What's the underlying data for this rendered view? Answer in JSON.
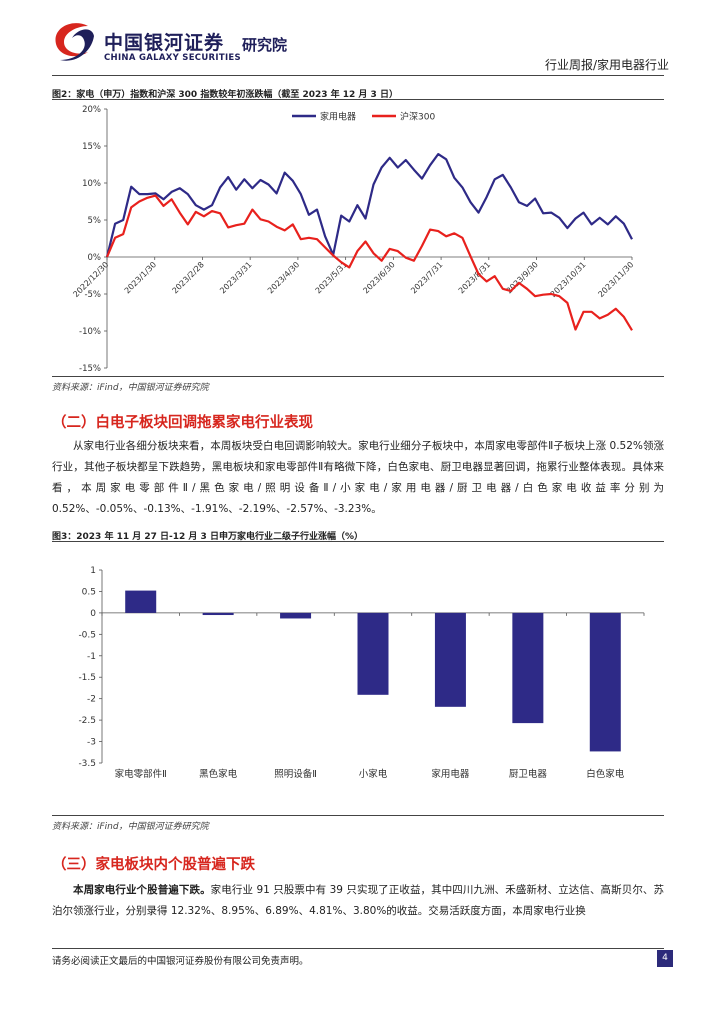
{
  "header": {
    "company_name": "中国银河证券",
    "company_en": "CHINA GALAXY SECURITIES",
    "institute": "研究院",
    "report_type": "行业周报/家用电器行业",
    "colors": {
      "brand": "#1f1f5a",
      "logo_red": "#d7261e"
    }
  },
  "figure2": {
    "title": "图2：家电（申万）指数和沪深 300 指数较年初涨跌幅（截至 2023 年 12 月 3 日）",
    "source": "资料来源：iFind，中国银河证券研究院",
    "chart_data": {
      "type": "line",
      "ylim": [
        -15,
        20
      ],
      "yticks": [
        "20%",
        "15%",
        "10%",
        "5%",
        "0%",
        "-5%",
        "-10%",
        "-15%"
      ],
      "xtick_labels": [
        "2022/12/30",
        "2023/1/30",
        "2023/2/28",
        "2023/3/31",
        "2023/4/30",
        "2023/5/31",
        "2023/6/30",
        "2023/7/31",
        "2023/8/31",
        "2023/9/30",
        "2023/10/31",
        "2023/11/30"
      ],
      "legend_position": "top-center",
      "series": [
        {
          "name": "家用电器",
          "color": "#2e2a87",
          "values": [
            0,
            4.5,
            5,
            9.5,
            8.5,
            8.5,
            8.6,
            7.8,
            8.8,
            9.3,
            8.5,
            7,
            6.4,
            7,
            9.4,
            10.8,
            9.1,
            10.5,
            9.3,
            10.4,
            9.8,
            8.6,
            11.4,
            10.3,
            8.5,
            5.7,
            6.4,
            2.8,
            0.3,
            5.6,
            4.8,
            7,
            5.2,
            9.8,
            12.1,
            13.4,
            12.1,
            13.1,
            11.8,
            10.6,
            12.4,
            13.9,
            13.2,
            10.7,
            9.4,
            7.4,
            6,
            8.1,
            10.5,
            11.1,
            9.4,
            7.4,
            6.9,
            7.9,
            5.9,
            6,
            5.3,
            3.9,
            5.2,
            6,
            4.4,
            5.3,
            4.4,
            5.5,
            4.5,
            2.4
          ]
        },
        {
          "name": "沪深300",
          "color": "#e8211d",
          "values": [
            0,
            2.6,
            3.1,
            6.7,
            7.5,
            8,
            8.3,
            6.9,
            7.8,
            6,
            4.4,
            6.1,
            5.5,
            6.2,
            5.9,
            4,
            4.3,
            4.5,
            6.4,
            5.1,
            4.8,
            4.1,
            3.6,
            4.4,
            2.4,
            2.6,
            2.4,
            1.3,
            0.2,
            -0.7,
            -1.4,
            0.8,
            2.1,
            0.5,
            -0.5,
            1.1,
            0.8,
            -0.1,
            -0.5,
            1.5,
            3.7,
            3.5,
            2.8,
            3.2,
            2.6,
            0.1,
            -2.3,
            -3.3,
            -2.6,
            -4.3,
            -4.6,
            -3.5,
            -4.3,
            -5.3,
            -5.1,
            -5,
            -5.3,
            -6.2,
            -9.8,
            -7.4,
            -7.4,
            -8.3,
            -7.8,
            -7,
            -8.1,
            -9.9
          ]
        }
      ]
    }
  },
  "section2": {
    "title": "（二）白电子板块回调拖累家电行业表现",
    "paragraph": "从家电行业各细分板块来看，本周板块受白电回调影响较大。家电行业细分子板块中，本周家电零部件Ⅱ子板块上涨 0.52%领涨行业，其他子板块都呈下跌趋势，黑电板块和家电零部件Ⅱ有略微下降，白色家电、厨卫电器显著回调，拖累行业整体表现。具体来看，本周家电零部件Ⅱ/黑色家电/照明设备Ⅱ/小家电/家用电器/厨卫电器/白色家电收益率分别为 0.52%、-0.05%、-0.13%、-1.91%、-2.19%、-2.57%、-3.23%。"
  },
  "figure3": {
    "title": "图3：2023 年 11 月 27 日-12 月 3 日申万家电行业二级子行业涨幅（%）",
    "source": "资料来源：iFind，中国银河证券研究院",
    "chart_data": {
      "type": "bar",
      "categories": [
        "家电零部件Ⅱ",
        "黑色家电",
        "照明设备Ⅱ",
        "小家电",
        "家用电器",
        "厨卫电器",
        "白色家电"
      ],
      "values": [
        0.52,
        -0.05,
        -0.13,
        -1.91,
        -2.19,
        -2.57,
        -3.23
      ],
      "ylim": [
        -3.5,
        1
      ],
      "yticks": [
        "1",
        "0.5",
        "0",
        "-0.5",
        "-1",
        "-1.5",
        "-2",
        "-2.5",
        "-3",
        "-3.5"
      ],
      "color": "#2e2a87"
    }
  },
  "section3": {
    "title": "（三）家电板块内个股普遍下跌",
    "lead": "本周家电行业个股普遍下跌。",
    "paragraph": "家电行业 91 只股票中有 39 只实现了正收益，其中四川九洲、禾盛新材、立达信、高斯贝尔、苏泊尔领涨行业，分别录得 12.32%、8.95%、6.89%、4.81%、3.80%的收益。交易活跃度方面，本周家电行业换"
  },
  "footer": {
    "disclaimer": "请务必阅读正文最后的中国银河证券股份有限公司免责声明。",
    "page_number": "4"
  }
}
